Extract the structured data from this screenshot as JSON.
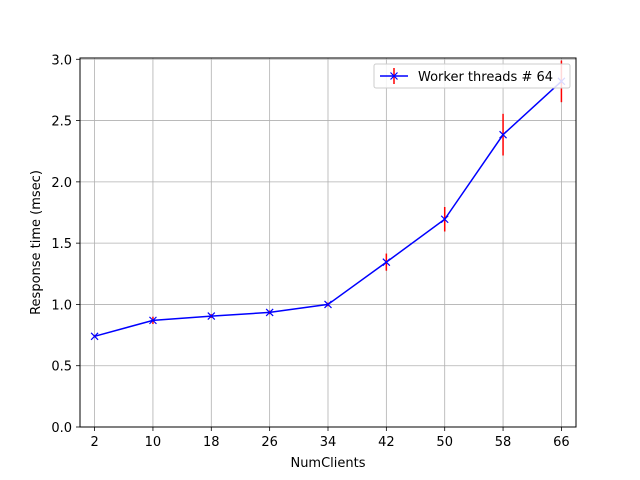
{
  "chart_data": {
    "type": "line",
    "title": "",
    "xlabel": "NumClients",
    "ylabel": "Response time (msec)",
    "x": [
      2,
      10,
      18,
      26,
      34,
      42,
      50,
      58,
      66
    ],
    "x_ticks": [
      "2",
      "10",
      "18",
      "26",
      "34",
      "42",
      "50",
      "58",
      "66"
    ],
    "y_ticks": [
      "0.0",
      "0.5",
      "1.0",
      "1.5",
      "2.0",
      "2.5",
      "3.0"
    ],
    "ylim": [
      0,
      3.0
    ],
    "grid": true,
    "legend_position": "top-right",
    "series": [
      {
        "name": "Worker threads # 64",
        "color": "#0000ff",
        "marker": "x",
        "error_color": "#ff0000",
        "values": [
          0.74,
          0.87,
          0.905,
          0.935,
          1.0,
          1.345,
          1.695,
          2.385,
          2.82
        ],
        "errors": [
          0.01,
          0.03,
          0.015,
          0.015,
          0.015,
          0.07,
          0.1,
          0.17,
          0.17
        ]
      }
    ]
  }
}
